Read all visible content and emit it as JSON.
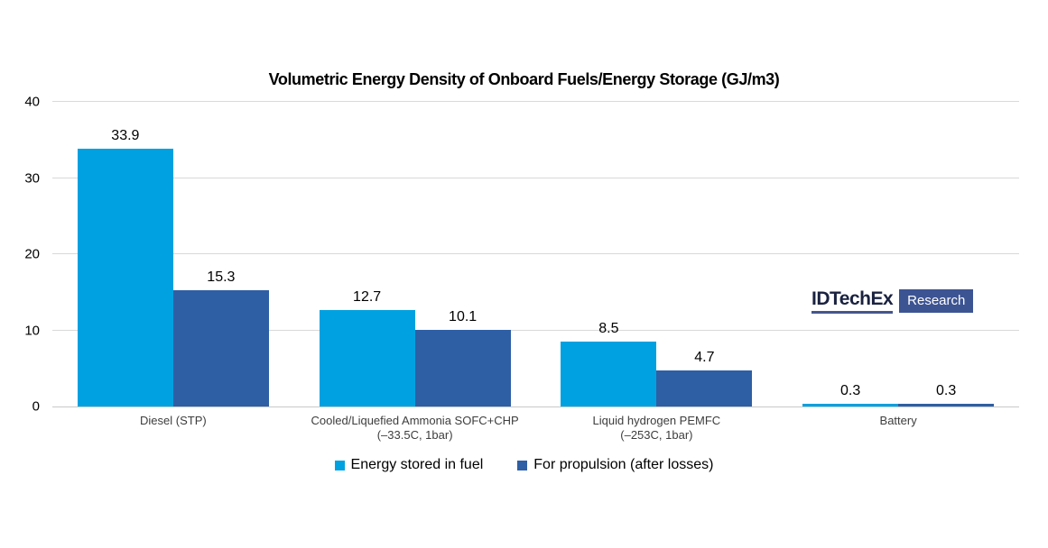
{
  "chart_data": {
    "type": "bar",
    "title": "Volumetric Energy Density of Onboard Fuels/Energy Storage (GJ/m3)",
    "categories": [
      "Diesel (STP)",
      "Cooled/Liquefied Ammonia SOFC+CHP\n(–33.5C, 1bar)",
      "Liquid hydrogen PEMFC\n(–253C, 1bar)",
      "Battery"
    ],
    "series": [
      {
        "name": "Energy stored in fuel",
        "color": "#00a1e0",
        "values": [
          33.9,
          12.7,
          8.5,
          0.3
        ]
      },
      {
        "name": "For propulsion (after losses)",
        "color": "#2e5fa5",
        "values": [
          15.3,
          10.1,
          4.7,
          0.3
        ]
      }
    ],
    "xlabel": "",
    "ylabel": "",
    "ylim": [
      0,
      40
    ],
    "yticks": [
      0,
      10,
      20,
      30,
      40
    ],
    "grid": "horizontal",
    "legend_position": "bottom"
  },
  "logo": {
    "brand": "IDTechEx",
    "suffix": "Research"
  },
  "colors": {
    "series1": "#00a1e0",
    "series2": "#2e5fa5",
    "gridline": "#d9d9d9",
    "axis_line": "#c9c9c9",
    "logo_text": "#1a2240",
    "logo_underline": "#44568e",
    "logo_badge_bg": "#3d5493"
  }
}
